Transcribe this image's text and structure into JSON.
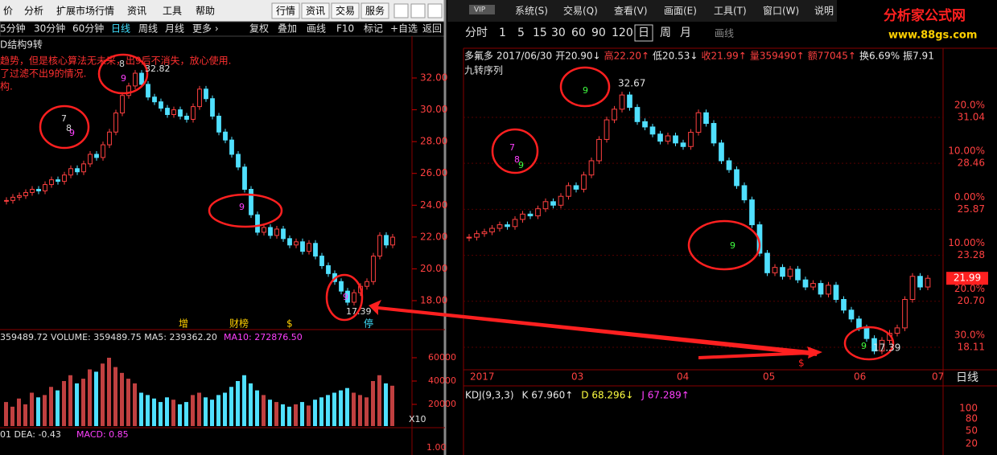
{
  "left_window": {
    "menu": [
      "价",
      "分析",
      "扩展市场行情",
      "资讯",
      "工具",
      "帮助"
    ],
    "buttons": [
      "行情",
      "资讯",
      "交易",
      "服务"
    ],
    "periods": [
      "5分钟",
      "30分钟",
      "60分钟",
      "日线",
      "周线",
      "月线",
      "更多 ›"
    ],
    "tools": [
      "复权",
      "叠加",
      "画线",
      "F10",
      "标记",
      "+自选",
      "返回"
    ],
    "indicator_title": "D结构9转",
    "notes": [
      "趋势，但是核心算法无未来，出9后不消失，放心使用.",
      "了过滤不出9的情况.",
      "构."
    ],
    "price_ticks": [
      {
        "value": 32,
        "label": "32.00"
      },
      {
        "value": 30,
        "label": "30.00"
      },
      {
        "value": 28,
        "label": "28.00"
      },
      {
        "value": 26,
        "label": "26.00"
      },
      {
        "value": 24,
        "label": "24.00"
      },
      {
        "value": 22,
        "label": "22.00"
      },
      {
        "value": 20,
        "label": "20.00"
      },
      {
        "value": 18,
        "label": "18.00"
      }
    ],
    "event_tags": [
      "增",
      "财榜",
      "$",
      "停"
    ],
    "volume_legend": "359489.72  VOLUME: 359489.75  MA5: 239362.20",
    "volume_ma10": "MA10: 272876.50",
    "volume_ticks": [
      60000,
      40000,
      20000
    ],
    "volume_unit": "X10",
    "macd_legend": "01  DEA: -0.43",
    "macd_value": "MACD: 0.85",
    "macd_tick": "1.00",
    "markers": {
      "high": "32.82",
      "low": "17.39"
    },
    "counts": [
      "7",
      "8",
      "9",
      "8",
      "9",
      "9",
      "9"
    ]
  },
  "right_window": {
    "logo": "VIP",
    "menu": [
      "系统(S)",
      "交易(Q)",
      "查看(V)",
      "画面(E)",
      "工具(T)",
      "窗口(W)",
      "说明"
    ],
    "site_name": "分析家公式网",
    "site_url": "www.88gs.com",
    "periods": [
      "分时",
      "1",
      "5",
      "15",
      "30",
      "60",
      "90",
      "120",
      "日",
      "周",
      "月"
    ],
    "draw_tool": "画线",
    "info": [
      {
        "text": "多氟多",
        "color": "#e8e8e8"
      },
      {
        "text": "2017/06/30",
        "color": "#e8e8e8"
      },
      {
        "text": "开20.90↓",
        "color": "#e8e8e8"
      },
      {
        "text": "高22.20↑",
        "color": "#ff4040"
      },
      {
        "text": "低20.53↓",
        "color": "#e8e8e8"
      },
      {
        "text": "收21.99↑",
        "color": "#ff4040"
      },
      {
        "text": "量359490↑",
        "color": "#ff4040"
      },
      {
        "text": "额77045↑",
        "color": "#ff4040"
      },
      {
        "text": "换6.69%",
        "color": "#e8e8e8"
      },
      {
        "text": "振7.91",
        "color": "#e8e8e8"
      }
    ],
    "indicator_title": "九转序列",
    "price_ticks": [
      {
        "pct": "20.0%",
        "value": 31.04,
        "label": "31.04"
      },
      {
        "pct": "10.00%",
        "value": 28.46,
        "label": "28.46"
      },
      {
        "pct": "0.00%",
        "value": 25.87,
        "label": "25.87"
      },
      {
        "pct": "10.00%",
        "value": 23.28,
        "label": "23.28"
      },
      {
        "pct": "20.0%",
        "value": 20.7,
        "label": "20.70"
      },
      {
        "pct": "30.0%",
        "value": 18.11,
        "label": "18.11"
      }
    ],
    "last_price": "21.99",
    "dates": [
      "2017",
      "03",
      "04",
      "05",
      "06",
      "07"
    ],
    "event_tag": "$",
    "period_label": "日线",
    "kdj": [
      {
        "text": "KDJ(9,3,3)",
        "color": "#e8e8e8"
      },
      {
        "text": "K 67.960↑",
        "color": "#e8e8e8"
      },
      {
        "text": "D 68.296↓",
        "color": "#ffff40"
      },
      {
        "text": "J 67.289↑",
        "color": "#ff40ff"
      }
    ],
    "kdj_ticks": [
      "100",
      "80",
      "50",
      "20"
    ],
    "markers": {
      "high": "32.67",
      "low": "17.39"
    },
    "counts": [
      "7",
      "8",
      "9",
      "9",
      "9",
      "9"
    ]
  },
  "prices": {
    "closes": [
      24.3,
      24.5,
      24.6,
      24.8,
      25.0,
      24.9,
      25.3,
      25.6,
      25.5,
      25.9,
      26.3,
      26.1,
      26.6,
      27.2,
      27.0,
      27.8,
      28.6,
      29.8,
      30.9,
      31.5,
      32.3,
      31.6,
      30.8,
      30.5,
      30.1,
      29.7,
      30.0,
      29.6,
      29.4,
      30.2,
      31.3,
      30.7,
      29.6,
      28.6,
      28.1,
      27.2,
      26.4,
      25.0,
      23.4,
      22.3,
      22.6,
      22.1,
      22.5,
      21.9,
      21.5,
      21.7,
      21.1,
      21.6,
      20.8,
      20.2,
      19.7,
      19.2,
      18.6,
      17.9,
      18.5,
      18.9,
      19.2,
      20.8,
      22.1,
      21.5,
      21.99
    ],
    "volumes": [
      22000,
      18000,
      25000,
      20000,
      30000,
      26000,
      28000,
      35000,
      32000,
      40000,
      45000,
      38000,
      42000,
      50000,
      48000,
      55000,
      60000,
      52000,
      47000,
      42000,
      38000,
      30000,
      28000,
      25000,
      22000,
      26000,
      24000,
      20000,
      22000,
      28000,
      30000,
      26000,
      24000,
      28000,
      30000,
      35000,
      40000,
      45000,
      38000,
      32000,
      28000,
      24000,
      22000,
      20000,
      18000,
      20000,
      22000,
      19000,
      24000,
      26000,
      28000,
      30000,
      32000,
      34000,
      30000,
      28000,
      26000,
      40000,
      45000,
      38000,
      36000
    ]
  }
}
